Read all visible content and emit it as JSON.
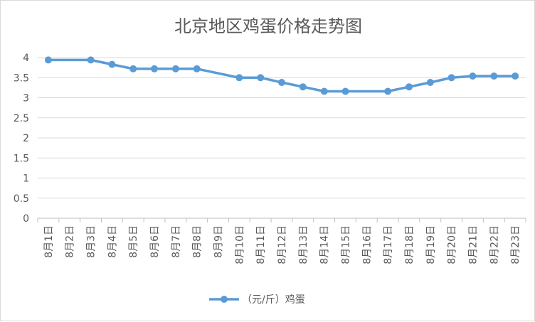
{
  "chart_data": {
    "type": "line",
    "title": "北京地区鸡蛋价格走势图",
    "xlabel": "",
    "ylabel": "",
    "categories": [
      "8月1日",
      "8月2日",
      "8月3日",
      "8月4日",
      "8月5日",
      "8月6日",
      "8月7日",
      "8月8日",
      "8月9日",
      "8月10日",
      "8月11日",
      "8月12日",
      "8月13日",
      "8月14日",
      "8月15日",
      "8月16日",
      "8月17日",
      "8月18日",
      "8月19日",
      "8月20日",
      "8月21日",
      "8月22日",
      "8月23日"
    ],
    "yticks": [
      "0",
      "0.5",
      "1",
      "1.5",
      "2",
      "2.5",
      "3",
      "3.5",
      "4"
    ],
    "ylim": [
      0,
      4
    ],
    "grid": true,
    "legend_position": "bottom",
    "series": [
      {
        "name": "（元/斤）鸡蛋",
        "color": "#5b9bd5",
        "values": [
          3.94,
          null,
          3.94,
          3.83,
          3.72,
          3.72,
          3.72,
          3.72,
          null,
          3.5,
          3.5,
          3.38,
          3.27,
          3.16,
          3.16,
          null,
          3.16,
          3.27,
          3.38,
          3.5,
          3.54,
          3.54,
          3.54
        ]
      }
    ]
  }
}
